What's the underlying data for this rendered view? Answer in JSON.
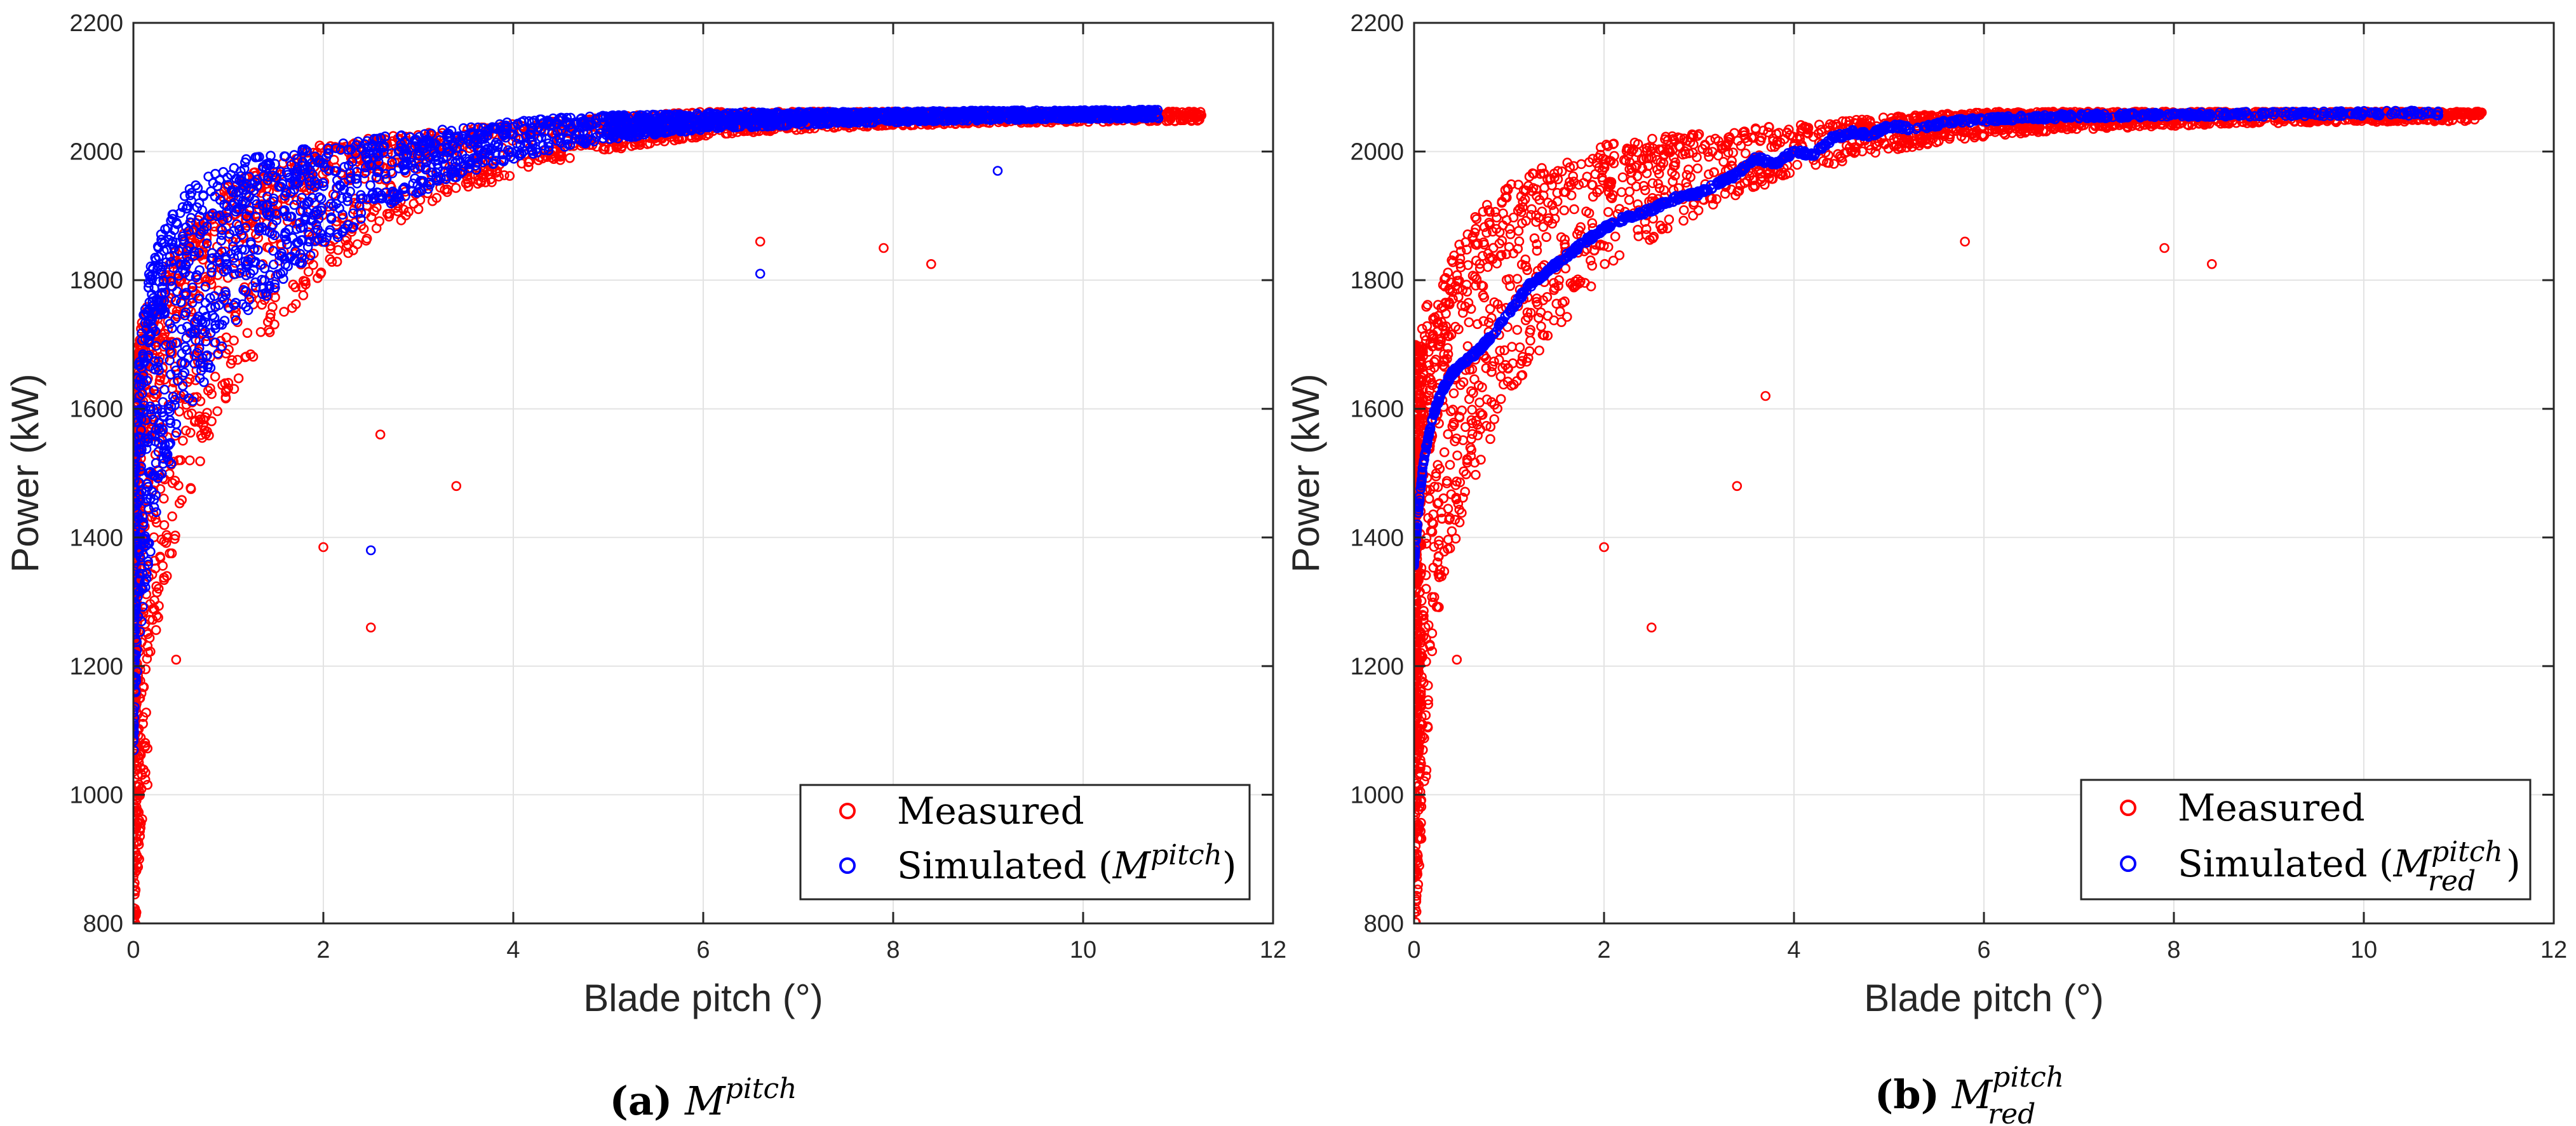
{
  "chart_data": [
    {
      "type": "scatter",
      "panel": "a",
      "caption_label": "(a)",
      "caption_main": "M",
      "caption_sup": "pitch",
      "caption_sub": "",
      "xlabel": "Blade pitch (°)",
      "ylabel": "Power (kW)",
      "xlim": [
        0,
        12
      ],
      "ylim": [
        800,
        2200
      ],
      "xticks": [
        0,
        2,
        4,
        6,
        8,
        10,
        12
      ],
      "yticks": [
        800,
        1000,
        1200,
        1400,
        1600,
        1800,
        2000,
        2200
      ],
      "grid": true,
      "legend_position": "bottom-right",
      "series": [
        {
          "name": "Measured",
          "label": "Measured",
          "color": "#ff0000",
          "marker": "open-circle",
          "style": "measured-cloud",
          "x": [
            0.0,
            0.0,
            0.0,
            0.02,
            0.05,
            0.1,
            0.15,
            0.2,
            0.25,
            0.3,
            0.4,
            0.5,
            0.6,
            0.7,
            0.8,
            0.9,
            1.0,
            1.2,
            1.5,
            1.8,
            2.0,
            2.2,
            2.5,
            3.0,
            3.5,
            4.0,
            4.5,
            5.0,
            5.5,
            6.0,
            7.0,
            8.0,
            9.0,
            10.0,
            11.0,
            11.25
          ],
          "y": [
            930,
            1050,
            1150,
            1300,
            1400,
            1470,
            1520,
            1560,
            1590,
            1620,
            1670,
            1710,
            1740,
            1770,
            1790,
            1810,
            1830,
            1860,
            1890,
            1920,
            1940,
            1950,
            1965,
            1985,
            2000,
            2015,
            2025,
            2035,
            2042,
            2048,
            2053,
            2056,
            2058,
            2059,
            2060,
            2060
          ],
          "outliers": [
            [
              2.5,
              1260
            ],
            [
              2.0,
              1385
            ],
            [
              0.45,
              1210
            ],
            [
              3.4,
              1480
            ],
            [
              8.4,
              1825
            ],
            [
              7.9,
              1850
            ],
            [
              6.6,
              1860
            ],
            [
              2.6,
              1560
            ]
          ]
        },
        {
          "name": "Simulated (M^pitch)",
          "label_prefix": "Simulated (",
          "label_main": "M",
          "label_sup": "pitch",
          "label_sub": "",
          "label_suffix": ")",
          "color": "#0000ff",
          "marker": "open-circle",
          "style": "simulated-cloud",
          "x": [
            0.0,
            0.02,
            0.05,
            0.1,
            0.15,
            0.2,
            0.3,
            0.4,
            0.5,
            0.6,
            0.8,
            1.0,
            1.2,
            1.5,
            2.0,
            2.5,
            3.0,
            3.5,
            4.0,
            4.5,
            5.0,
            6.0,
            7.0,
            8.0,
            9.0,
            10.0,
            10.8
          ],
          "y": [
            1360,
            1440,
            1510,
            1580,
            1630,
            1670,
            1720,
            1760,
            1790,
            1815,
            1850,
            1875,
            1895,
            1920,
            1950,
            1975,
            1995,
            2010,
            2025,
            2035,
            2042,
            2050,
            2054,
            2056,
            2058,
            2059,
            2060
          ],
          "outliers": [
            [
              2.5,
              1380
            ],
            [
              6.6,
              1810
            ],
            [
              9.1,
              1970
            ]
          ]
        }
      ]
    },
    {
      "type": "scatter",
      "panel": "b",
      "caption_label": "(b)",
      "caption_main": "M",
      "caption_sup": "pitch",
      "caption_sub": "red",
      "xlabel": "Blade pitch (°)",
      "ylabel": "Power (kW)",
      "xlim": [
        0,
        12
      ],
      "ylim": [
        800,
        2200
      ],
      "xticks": [
        0,
        2,
        4,
        6,
        8,
        10,
        12
      ],
      "yticks": [
        800,
        1000,
        1200,
        1400,
        1600,
        1800,
        2000,
        2200
      ],
      "grid": true,
      "legend_position": "bottom-right",
      "series": [
        {
          "name": "Measured",
          "label": "Measured",
          "color": "#ff0000",
          "marker": "open-circle",
          "style": "measured-cloud",
          "x": [
            0.0,
            0.0,
            0.0,
            0.02,
            0.05,
            0.1,
            0.15,
            0.2,
            0.25,
            0.3,
            0.4,
            0.5,
            0.6,
            0.7,
            0.8,
            0.9,
            1.0,
            1.2,
            1.5,
            1.8,
            2.0,
            2.2,
            2.5,
            3.0,
            3.5,
            4.0,
            4.5,
            5.0,
            5.5,
            6.0,
            7.0,
            8.0,
            9.0,
            10.0,
            11.0,
            11.25
          ],
          "y": [
            930,
            1050,
            1150,
            1300,
            1400,
            1470,
            1520,
            1560,
            1590,
            1620,
            1670,
            1710,
            1740,
            1770,
            1790,
            1810,
            1830,
            1860,
            1890,
            1920,
            1940,
            1950,
            1965,
            1985,
            2000,
            2015,
            2025,
            2035,
            2042,
            2048,
            2053,
            2056,
            2058,
            2059,
            2060,
            2060
          ],
          "outliers": [
            [
              2.5,
              1260
            ],
            [
              2.0,
              1385
            ],
            [
              0.45,
              1210
            ],
            [
              3.4,
              1480
            ],
            [
              8.4,
              1825
            ],
            [
              7.9,
              1850
            ],
            [
              5.8,
              1860
            ],
            [
              3.7,
              1620
            ]
          ]
        },
        {
          "name": "Simulated (M^pitch_red)",
          "label_prefix": "Simulated (",
          "label_main": "M",
          "label_sup": "pitch",
          "label_sub": "red",
          "label_suffix": ")",
          "color": "#0000ff",
          "marker": "open-circle",
          "style": "simulated-curve",
          "x": [
            0.0,
            0.05,
            0.1,
            0.2,
            0.3,
            0.4,
            0.5,
            0.6,
            0.8,
            1.0,
            1.2,
            1.5,
            1.8,
            2.0,
            2.2,
            2.5,
            2.8,
            3.0,
            3.2,
            3.4,
            3.6,
            3.8,
            4.0,
            4.2,
            4.4,
            4.6,
            4.8,
            5.0,
            5.3,
            5.6,
            6.0,
            6.5,
            7.0,
            8.0,
            9.0,
            10.0,
            10.8
          ],
          "y": [
            1360,
            1450,
            1520,
            1590,
            1630,
            1655,
            1670,
            1680,
            1710,
            1750,
            1790,
            1825,
            1860,
            1880,
            1895,
            1910,
            1930,
            1935,
            1950,
            1965,
            1990,
            1980,
            2000,
            1995,
            2020,
            2030,
            2025,
            2040,
            2035,
            2045,
            2050,
            2053,
            2055,
            2057,
            2058,
            2059,
            2060
          ],
          "outliers": []
        }
      ]
    }
  ]
}
